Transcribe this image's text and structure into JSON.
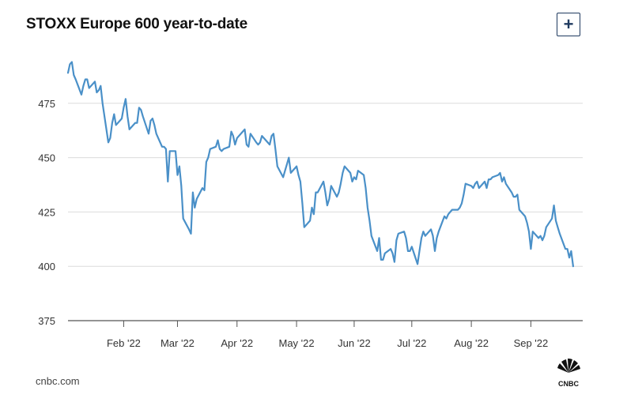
{
  "header": {
    "title": "STOXX Europe 600 year-to-date",
    "expand_label": "+"
  },
  "footer": {
    "source": "cnbc.com",
    "logo_text": "CNBC"
  },
  "colors": {
    "line": "#4a90c8",
    "grid": "#dcdcdc",
    "axis": "#555555",
    "text": "#333333"
  },
  "icons": {
    "expand": "plus-icon",
    "logo": "nbc-peacock-icon"
  },
  "chart_data": {
    "type": "line",
    "title": "STOXX Europe 600 year-to-date",
    "xlabel": "",
    "ylabel": "",
    "ylim": [
      375,
      500
    ],
    "y_ticks": [
      375,
      400,
      425,
      450,
      475
    ],
    "x_ticks": [
      {
        "label": "Feb '22",
        "date": "2022-02-01"
      },
      {
        "label": "Mar '22",
        "date": "2022-03-01"
      },
      {
        "label": "Apr '22",
        "date": "2022-04-01"
      },
      {
        "label": "May '22",
        "date": "2022-05-02"
      },
      {
        "label": "Jun '22",
        "date": "2022-06-01"
      },
      {
        "label": "Jul '22",
        "date": "2022-07-01"
      },
      {
        "label": "Aug '22",
        "date": "2022-08-01"
      },
      {
        "label": "Sep '22",
        "date": "2022-09-01"
      }
    ],
    "x_range": [
      "2022-01-03",
      "2022-09-28"
    ],
    "grid": "horizontal",
    "series": [
      {
        "points": [
          [
            "2022-01-03",
            489
          ],
          [
            "2022-01-04",
            493
          ],
          [
            "2022-01-05",
            494
          ],
          [
            "2022-01-06",
            488
          ],
          [
            "2022-01-07",
            486
          ],
          [
            "2022-01-10",
            479
          ],
          [
            "2022-01-11",
            483
          ],
          [
            "2022-01-12",
            486
          ],
          [
            "2022-01-13",
            486
          ],
          [
            "2022-01-14",
            482
          ],
          [
            "2022-01-17",
            485
          ],
          [
            "2022-01-18",
            480
          ],
          [
            "2022-01-19",
            481
          ],
          [
            "2022-01-20",
            483
          ],
          [
            "2022-01-21",
            475
          ],
          [
            "2022-01-24",
            457
          ],
          [
            "2022-01-25",
            459
          ],
          [
            "2022-01-26",
            466
          ],
          [
            "2022-01-27",
            470
          ],
          [
            "2022-01-28",
            465
          ],
          [
            "2022-01-31",
            468
          ],
          [
            "2022-02-01",
            473
          ],
          [
            "2022-02-02",
            477
          ],
          [
            "2022-02-03",
            469
          ],
          [
            "2022-02-04",
            463
          ],
          [
            "2022-02-07",
            466
          ],
          [
            "2022-02-08",
            466
          ],
          [
            "2022-02-09",
            473
          ],
          [
            "2022-02-10",
            472
          ],
          [
            "2022-02-11",
            469
          ],
          [
            "2022-02-14",
            461
          ],
          [
            "2022-02-15",
            467
          ],
          [
            "2022-02-16",
            468
          ],
          [
            "2022-02-17",
            465
          ],
          [
            "2022-02-18",
            461
          ],
          [
            "2022-02-21",
            455
          ],
          [
            "2022-02-22",
            455
          ],
          [
            "2022-02-23",
            454
          ],
          [
            "2022-02-24",
            439
          ],
          [
            "2022-02-25",
            453
          ],
          [
            "2022-02-28",
            453
          ],
          [
            "2022-03-01",
            442
          ],
          [
            "2022-03-02",
            446
          ],
          [
            "2022-03-03",
            437
          ],
          [
            "2022-03-04",
            422
          ],
          [
            "2022-03-07",
            417
          ],
          [
            "2022-03-08",
            415
          ],
          [
            "2022-03-09",
            434
          ],
          [
            "2022-03-10",
            427
          ],
          [
            "2022-03-11",
            431
          ],
          [
            "2022-03-14",
            436
          ],
          [
            "2022-03-15",
            435
          ],
          [
            "2022-03-16",
            448
          ],
          [
            "2022-03-17",
            450
          ],
          [
            "2022-03-18",
            454
          ],
          [
            "2022-03-21",
            455
          ],
          [
            "2022-03-22",
            458
          ],
          [
            "2022-03-23",
            454
          ],
          [
            "2022-03-24",
            453
          ],
          [
            "2022-03-25",
            454
          ],
          [
            "2022-03-28",
            455
          ],
          [
            "2022-03-29",
            462
          ],
          [
            "2022-03-30",
            460
          ],
          [
            "2022-03-31",
            456
          ],
          [
            "2022-04-01",
            459
          ],
          [
            "2022-04-04",
            462
          ],
          [
            "2022-04-05",
            463
          ],
          [
            "2022-04-06",
            456
          ],
          [
            "2022-04-07",
            455
          ],
          [
            "2022-04-08",
            461
          ],
          [
            "2022-04-11",
            457
          ],
          [
            "2022-04-12",
            456
          ],
          [
            "2022-04-13",
            457
          ],
          [
            "2022-04-14",
            460
          ],
          [
            "2022-04-18",
            456
          ],
          [
            "2022-04-19",
            460
          ],
          [
            "2022-04-20",
            461
          ],
          [
            "2022-04-21",
            454
          ],
          [
            "2022-04-22",
            446
          ],
          [
            "2022-04-25",
            441
          ],
          [
            "2022-04-26",
            444
          ],
          [
            "2022-04-27",
            447
          ],
          [
            "2022-04-28",
            450
          ],
          [
            "2022-04-29",
            443
          ],
          [
            "2022-05-02",
            446
          ],
          [
            "2022-05-03",
            442
          ],
          [
            "2022-05-04",
            439
          ],
          [
            "2022-05-05",
            429
          ],
          [
            "2022-05-06",
            418
          ],
          [
            "2022-05-09",
            421
          ],
          [
            "2022-05-10",
            427
          ],
          [
            "2022-05-11",
            424
          ],
          [
            "2022-05-12",
            434
          ],
          [
            "2022-05-13",
            434
          ],
          [
            "2022-05-16",
            439
          ],
          [
            "2022-05-17",
            434
          ],
          [
            "2022-05-18",
            428
          ],
          [
            "2022-05-19",
            431
          ],
          [
            "2022-05-20",
            437
          ],
          [
            "2022-05-23",
            432
          ],
          [
            "2022-05-24",
            434
          ],
          [
            "2022-05-25",
            438
          ],
          [
            "2022-05-26",
            443
          ],
          [
            "2022-05-27",
            446
          ],
          [
            "2022-05-30",
            443
          ],
          [
            "2022-05-31",
            439
          ],
          [
            "2022-06-01",
            441
          ],
          [
            "2022-06-02",
            440
          ],
          [
            "2022-06-03",
            444
          ],
          [
            "2022-06-06",
            442
          ],
          [
            "2022-06-07",
            436
          ],
          [
            "2022-06-08",
            427
          ],
          [
            "2022-06-09",
            421
          ],
          [
            "2022-06-10",
            414
          ],
          [
            "2022-06-13",
            407
          ],
          [
            "2022-06-14",
            413
          ],
          [
            "2022-06-15",
            403
          ],
          [
            "2022-06-16",
            403
          ],
          [
            "2022-06-17",
            406
          ],
          [
            "2022-06-20",
            408
          ],
          [
            "2022-06-21",
            406
          ],
          [
            "2022-06-22",
            402
          ],
          [
            "2022-06-23",
            412
          ],
          [
            "2022-06-24",
            415
          ],
          [
            "2022-06-27",
            416
          ],
          [
            "2022-06-28",
            413
          ],
          [
            "2022-06-29",
            407
          ],
          [
            "2022-06-30",
            407
          ],
          [
            "2022-07-01",
            409
          ],
          [
            "2022-07-04",
            401
          ],
          [
            "2022-07-05",
            407
          ],
          [
            "2022-07-06",
            413
          ],
          [
            "2022-07-07",
            416
          ],
          [
            "2022-07-08",
            414
          ],
          [
            "2022-07-11",
            417
          ],
          [
            "2022-07-12",
            414
          ],
          [
            "2022-07-13",
            407
          ],
          [
            "2022-07-14",
            413
          ],
          [
            "2022-07-15",
            416
          ],
          [
            "2022-07-18",
            423
          ],
          [
            "2022-07-19",
            422
          ],
          [
            "2022-07-20",
            424
          ],
          [
            "2022-07-21",
            425
          ],
          [
            "2022-07-22",
            426
          ],
          [
            "2022-07-25",
            426
          ],
          [
            "2022-07-26",
            427
          ],
          [
            "2022-07-27",
            429
          ],
          [
            "2022-07-28",
            433
          ],
          [
            "2022-07-29",
            438
          ],
          [
            "2022-08-01",
            437
          ],
          [
            "2022-08-02",
            436
          ],
          [
            "2022-08-03",
            438
          ],
          [
            "2022-08-04",
            439
          ],
          [
            "2022-08-05",
            436
          ],
          [
            "2022-08-08",
            439
          ],
          [
            "2022-08-09",
            436
          ],
          [
            "2022-08-10",
            440
          ],
          [
            "2022-08-11",
            440
          ],
          [
            "2022-08-12",
            441
          ],
          [
            "2022-08-15",
            442
          ],
          [
            "2022-08-16",
            443
          ],
          [
            "2022-08-17",
            439
          ],
          [
            "2022-08-18",
            441
          ],
          [
            "2022-08-19",
            438
          ],
          [
            "2022-08-22",
            434
          ],
          [
            "2022-08-23",
            432
          ],
          [
            "2022-08-24",
            432
          ],
          [
            "2022-08-25",
            433
          ],
          [
            "2022-08-26",
            426
          ],
          [
            "2022-08-29",
            423
          ],
          [
            "2022-08-30",
            420
          ],
          [
            "2022-08-31",
            416
          ],
          [
            "2022-09-01",
            408
          ],
          [
            "2022-09-02",
            416
          ],
          [
            "2022-09-05",
            413
          ],
          [
            "2022-09-06",
            414
          ],
          [
            "2022-09-07",
            412
          ],
          [
            "2022-09-08",
            414
          ],
          [
            "2022-09-09",
            418
          ],
          [
            "2022-09-12",
            422
          ],
          [
            "2022-09-13",
            428
          ],
          [
            "2022-09-14",
            421
          ],
          [
            "2022-09-15",
            418
          ],
          [
            "2022-09-16",
            415
          ],
          [
            "2022-09-19",
            408
          ],
          [
            "2022-09-20",
            408
          ],
          [
            "2022-09-21",
            404
          ],
          [
            "2022-09-22",
            407
          ],
          [
            "2022-09-23",
            400
          ]
        ]
      }
    ]
  }
}
